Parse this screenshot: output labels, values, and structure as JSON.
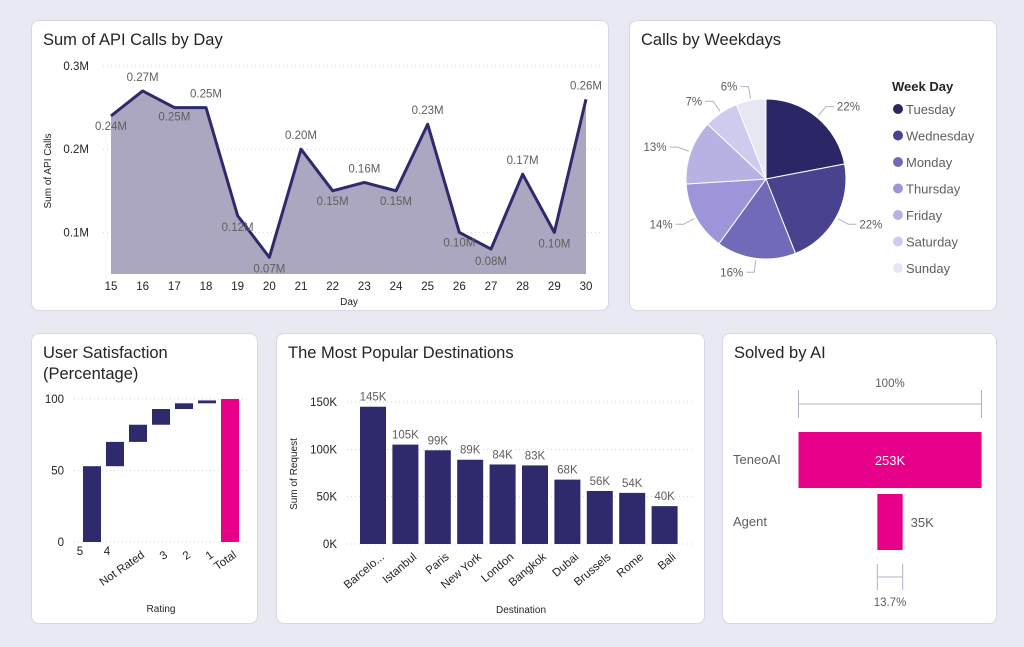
{
  "colors": {
    "navy": "#2e2a6b",
    "area_fill": "#a6a2bd",
    "magenta": "#e6008a",
    "pie": [
      "#2b2767",
      "#48428f",
      "#716ab8",
      "#9c95d9",
      "#b7b2e3",
      "#cfcbee",
      "#e7e6f3"
    ]
  },
  "cards": {
    "api": {
      "title": "Sum of API Calls by Day"
    },
    "weekdays": {
      "title": "Calls by Weekdays"
    },
    "satisfaction": {
      "title_line1": "User Satisfaction",
      "title_line2": "(Percentage)"
    },
    "destinations": {
      "title": "The Most Popular Destinations"
    },
    "solved": {
      "title": "Solved by AI"
    }
  },
  "chart_data": [
    {
      "id": "api_calls",
      "type": "area",
      "title": "Sum of API Calls by Day",
      "xlabel": "Day",
      "ylabel": "Sum of API Calls",
      "x": [
        15,
        16,
        17,
        18,
        19,
        20,
        21,
        22,
        23,
        24,
        25,
        26,
        27,
        28,
        29,
        30
      ],
      "values": [
        0.24,
        0.27,
        0.25,
        0.25,
        0.12,
        0.07,
        0.2,
        0.15,
        0.16,
        0.15,
        0.23,
        0.1,
        0.08,
        0.17,
        0.1,
        0.26
      ],
      "data_labels": [
        "0.24M",
        "0.27M",
        "0.25M",
        "0.25M",
        "0.12M",
        "0.07M",
        "0.20M",
        "0.15M",
        "0.16M",
        "0.15M",
        "0.23M",
        "0.10M",
        "0.08M",
        "0.17M",
        "0.10M",
        "0.26M"
      ],
      "y_ticks": [
        "0.1M",
        "0.2M",
        "0.3M"
      ],
      "y_tick_values": [
        0.1,
        0.2,
        0.3
      ],
      "ylim": [
        0.05,
        0.3
      ]
    },
    {
      "id": "weekdays",
      "type": "pie",
      "title": "Calls by Weekdays",
      "legend_title": "Week Day",
      "labels": [
        "Tuesday",
        "Wednesday",
        "Monday",
        "Thursday",
        "Friday",
        "Saturday",
        "Sunday"
      ],
      "values": [
        22,
        22,
        16,
        14,
        13,
        7,
        6
      ],
      "value_labels": [
        "22%",
        "22%",
        "16%",
        "14%",
        "13%",
        "7%",
        "6%"
      ]
    },
    {
      "id": "satisfaction",
      "type": "waterfall",
      "title": "User Satisfaction (Percentage)",
      "xlabel": "Rating",
      "categories": [
        "5",
        "4",
        "Not Rated",
        "3",
        "2",
        "1",
        "Total"
      ],
      "increments": [
        53,
        17,
        12,
        11,
        4,
        2,
        1
      ],
      "total": 100,
      "y_ticks": [
        "0",
        "50",
        "100"
      ],
      "y_tick_values": [
        0,
        50,
        100
      ],
      "ylim": [
        0,
        100
      ]
    },
    {
      "id": "destinations",
      "type": "bar",
      "title": "The Most Popular Destinations",
      "xlabel": "Destination",
      "ylabel": "Sum of Request",
      "categories": [
        "Barcelo...",
        "Istanbul",
        "Paris",
        "New York",
        "London",
        "Bangkok",
        "Dubai",
        "Brussels",
        "Rome",
        "Bali"
      ],
      "values": [
        145,
        105,
        99,
        89,
        84,
        83,
        68,
        56,
        54,
        40
      ],
      "data_labels": [
        "145K",
        "105K",
        "99K",
        "89K",
        "84K",
        "83K",
        "68K",
        "56K",
        "54K",
        "40K"
      ],
      "y_ticks": [
        "0K",
        "50K",
        "100K",
        "150K"
      ],
      "y_tick_values": [
        0,
        50,
        100,
        150
      ],
      "ylim": [
        0,
        150
      ]
    },
    {
      "id": "solved",
      "type": "funnel",
      "title": "Solved by AI",
      "categories": [
        "TeneoAI",
        "Agent"
      ],
      "values": [
        253,
        35
      ],
      "data_labels": [
        "253K",
        "35K"
      ],
      "top_percent": "100%",
      "bottom_percent": "13.7%"
    }
  ]
}
